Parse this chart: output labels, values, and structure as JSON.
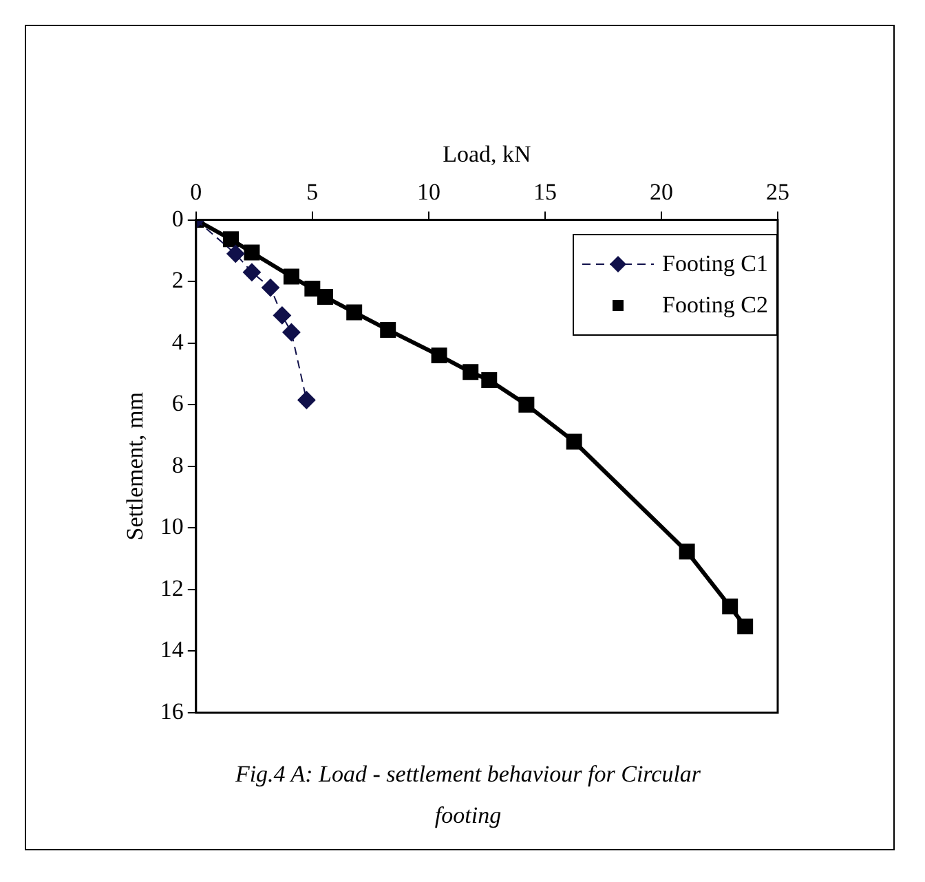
{
  "chart_data": {
    "type": "line",
    "xlabel": "Load, kN",
    "ylabel": "Settlement, mm",
    "xlim": [
      0,
      25
    ],
    "xticks": [
      0,
      5,
      10,
      15,
      20,
      25
    ],
    "ylim": [
      16,
      0
    ],
    "yticks": [
      0,
      2,
      4,
      6,
      8,
      10,
      12,
      14,
      16
    ],
    "grid": false,
    "legend": "top right",
    "series": [
      {
        "name": "Footing C1",
        "color": "#10104a",
        "marker": "diamond",
        "line_style": "dashed",
        "x": [
          0,
          1.7,
          2.4,
          3.2,
          3.7,
          4.1,
          4.75
        ],
        "values": [
          0,
          1.1,
          1.7,
          2.2,
          3.1,
          3.65,
          5.85
        ]
      },
      {
        "name": "Footing C2",
        "color": "#000000",
        "marker": "square",
        "line_style": "solid",
        "x": [
          0,
          1.5,
          2.4,
          4.1,
          5.0,
          5.55,
          6.8,
          8.25,
          10.45,
          11.8,
          12.6,
          14.2,
          16.25,
          21.1,
          22.95,
          23.6
        ],
        "values": [
          0,
          0.63,
          1.06,
          1.84,
          2.23,
          2.5,
          3.0,
          3.57,
          4.4,
          4.94,
          5.2,
          6.0,
          7.2,
          10.77,
          12.55,
          13.2
        ]
      }
    ],
    "annotations": [
      "Fig.4 A: Load - settlement behaviour for Circular footing"
    ]
  }
}
